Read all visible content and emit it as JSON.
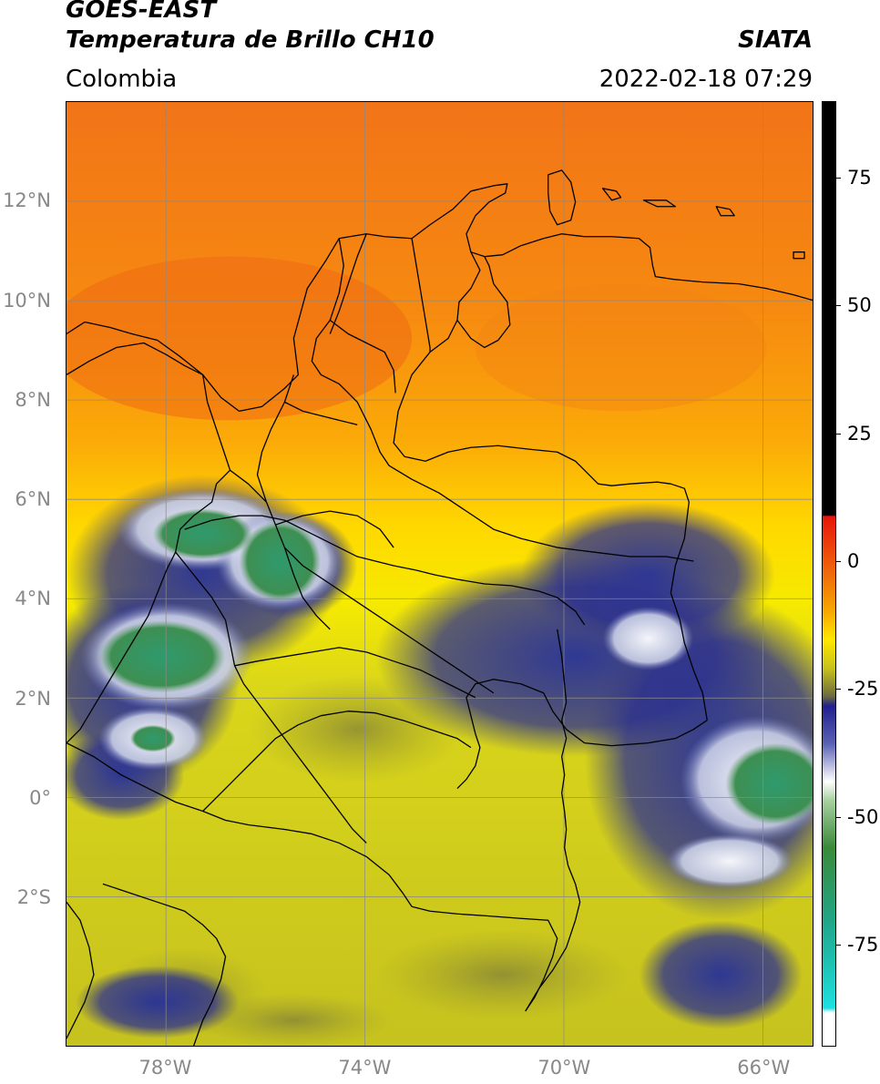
{
  "title": {
    "main": "GOES-EAST",
    "sub": "Temperatura de Brillo CH10",
    "org": "SIATA",
    "region": "Colombia",
    "datetime": "2022-02-18 07:29"
  },
  "map": {
    "lat_labels": [
      "12°N",
      "10°N",
      "8°N",
      "6°N",
      "4°N",
      "2°N",
      "0°",
      "2°S"
    ],
    "lat_values": [
      12,
      10,
      8,
      6,
      4,
      2,
      0,
      -2
    ],
    "lon_labels": [
      "78°W",
      "74°W",
      "70°W",
      "66°W"
    ],
    "lon_values": [
      -78,
      -74,
      -70,
      -66
    ],
    "extent": {
      "lon_min": -80,
      "lon_max": -65,
      "lat_min": -5,
      "lat_max": 14
    },
    "colors": {
      "warm_top": "#f47a10",
      "warm_mid": "#ffb200",
      "warm_low": "#ffe400",
      "cool_olive": "#c9c51a",
      "deep_blue": "#1b1e8c",
      "pale": "#e6eaf2",
      "green": "#2f8f5a",
      "border": "#000000",
      "grid": "#8a8a8a"
    }
  },
  "colorbar": {
    "labels": [
      "75",
      "50",
      "25",
      "0",
      "-25",
      "-50",
      "-75"
    ],
    "values": [
      75,
      50,
      25,
      0,
      -25,
      -50,
      -75
    ],
    "range": [
      -95,
      90
    ]
  }
}
